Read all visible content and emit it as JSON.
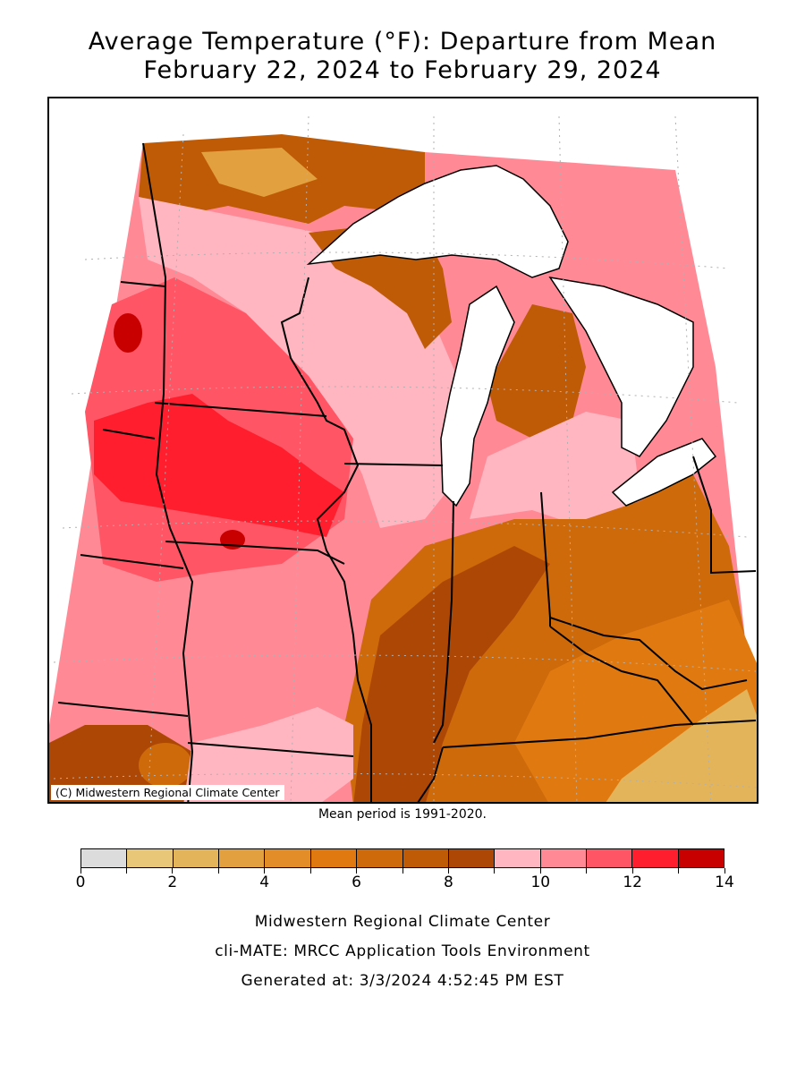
{
  "header": {
    "title_line1": "Average Temperature (°F): Departure from Mean",
    "title_line2": "February 22, 2024 to February 29, 2024"
  },
  "map": {
    "credit": "(C) Midwestern Regional Climate Center",
    "mean_note": "Mean period is 1991-2020."
  },
  "legend": {
    "colors": [
      "#dcdcdc",
      "#e8c878",
      "#e4b45a",
      "#e3a03f",
      "#e28d28",
      "#e07a10",
      "#cf6a0b",
      "#bf5a07",
      "#ad4705",
      "#ffb6c1",
      "#ff8a96",
      "#ff5564",
      "#ff1e2e",
      "#c80000"
    ],
    "tick_labels": [
      "0",
      "2",
      "4",
      "6",
      "8",
      "10",
      "12",
      "14"
    ]
  },
  "footer": {
    "line1": "Midwestern Regional Climate Center",
    "line2": "cli-MATE: MRCC Application Tools Environment",
    "line3": "Generated at: 3/3/2024 4:52:45 PM EST"
  }
}
